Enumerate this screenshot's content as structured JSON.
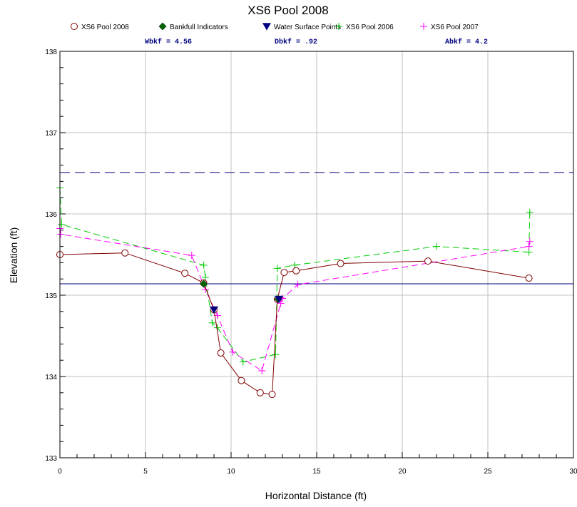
{
  "chart_data": {
    "type": "line",
    "title": "XS6 Pool 2008",
    "xlabel": "Horizontal Distance (ft)",
    "ylabel": "Elevation (ft)",
    "xlim": [
      0,
      30
    ],
    "ylim": [
      133,
      138
    ],
    "x_ticks": [
      0,
      5,
      10,
      15,
      20,
      25,
      30
    ],
    "y_ticks": [
      133,
      134,
      135,
      136,
      137,
      138
    ],
    "x_tick_labels": [
      "0",
      "5",
      "10",
      "15",
      "20",
      "25",
      "30"
    ],
    "y_tick_labels": [
      "133",
      "134",
      "135",
      "136",
      "137",
      "138"
    ],
    "grid": true,
    "legend_position": "top",
    "stats": [
      {
        "label": "Wbkf = 4.56"
      },
      {
        "label": "Dbkf = .92"
      },
      {
        "label": "Abkf = 4.2"
      }
    ],
    "reference_lines": [
      {
        "y": 136.51,
        "style": "dashed",
        "color": "#000080"
      },
      {
        "y": 135.14,
        "style": "solid",
        "color": "#000080"
      }
    ],
    "series": [
      {
        "name": "XS6 Pool 2008",
        "marker": "circle",
        "line": "solid",
        "line_color": "#800000",
        "marker_color": "#800000",
        "points": [
          [
            0,
            135.5
          ],
          [
            3.8,
            135.52
          ],
          [
            7.3,
            135.27
          ],
          [
            8.4,
            135.15
          ],
          [
            9.0,
            134.82
          ],
          [
            9.4,
            134.29
          ],
          [
            10.6,
            133.95
          ],
          [
            11.7,
            133.8
          ],
          [
            12.4,
            133.78
          ],
          [
            12.7,
            134.95
          ],
          [
            13.1,
            135.28
          ],
          [
            13.8,
            135.3
          ],
          [
            16.4,
            135.39
          ],
          [
            21.5,
            135.42
          ],
          [
            27.4,
            135.21
          ]
        ]
      },
      {
        "name": "Bankfull Indicators",
        "marker": "diamond",
        "line": "none",
        "marker_color": "#006400",
        "points": [
          [
            8.4,
            135.14
          ],
          [
            12.75,
            134.95
          ]
        ]
      },
      {
        "name": "Water Surface Points",
        "marker": "triangle-down",
        "line": "none",
        "marker_color": "#000080",
        "points": [
          [
            9.0,
            134.82
          ],
          [
            12.8,
            134.95
          ]
        ]
      },
      {
        "name": "XS6 Pool 2006",
        "marker": "plus",
        "line": "dashed",
        "line_color": "#00cc00",
        "marker_color": "#00cc00",
        "points": [
          [
            0,
            136.32
          ],
          [
            0.1,
            135.87
          ],
          [
            8.4,
            135.37
          ],
          [
            8.5,
            135.22
          ],
          [
            8.9,
            134.66
          ],
          [
            9.2,
            134.6
          ],
          [
            10.7,
            134.18
          ],
          [
            12.6,
            134.27
          ],
          [
            12.7,
            135.33
          ],
          [
            13.7,
            135.37
          ],
          [
            22.0,
            135.6
          ],
          [
            27.4,
            135.53
          ],
          [
            27.45,
            136.02
          ]
        ]
      },
      {
        "name": "XS6 Pool 2007",
        "marker": "plus",
        "line": "dashed",
        "line_color": "#ff00ff",
        "marker_color": "#ff00ff",
        "points": [
          [
            0,
            135.82
          ],
          [
            0.05,
            135.75
          ],
          [
            7.7,
            135.49
          ],
          [
            8.5,
            135.07
          ],
          [
            9.2,
            134.75
          ],
          [
            10.1,
            134.3
          ],
          [
            11.8,
            134.07
          ],
          [
            12.9,
            134.9
          ],
          [
            13.0,
            134.96
          ],
          [
            13.9,
            135.13
          ],
          [
            27.4,
            135.6
          ],
          [
            27.45,
            135.66
          ]
        ]
      }
    ]
  }
}
